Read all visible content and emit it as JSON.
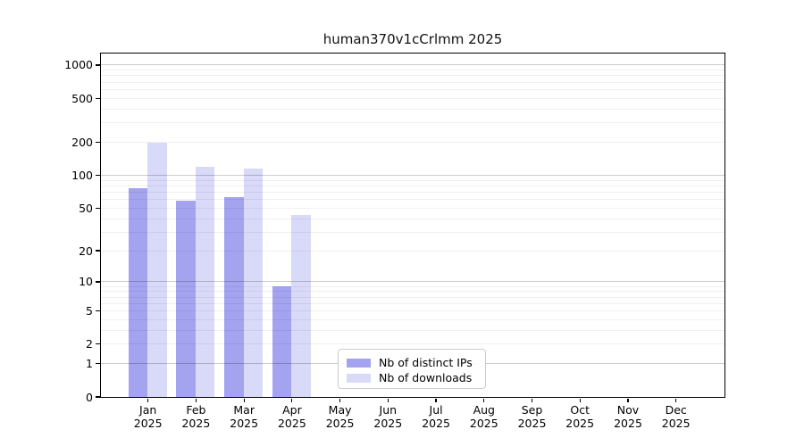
{
  "title": "human370v1cCrlmm 2025",
  "colors": {
    "ips": "#a3a3f0",
    "downloads": "#d9d9f8",
    "grid_major": "rgba(0,0,0,0.20)",
    "grid_minor": "rgba(0,0,0,0.06)",
    "spine": "#000000",
    "legend_border": "#cccccc"
  },
  "y_axis": {
    "scale": "log1p",
    "ticks": [
      0,
      1,
      2,
      5,
      10,
      20,
      50,
      100,
      200,
      500,
      1000
    ]
  },
  "x_axis": {
    "months": [
      "Jan",
      "Feb",
      "Mar",
      "Apr",
      "May",
      "Jun",
      "Jul",
      "Aug",
      "Sep",
      "Oct",
      "Nov",
      "Dec"
    ],
    "year": "2025"
  },
  "legend": {
    "items": [
      {
        "label": "Nb of distinct IPs",
        "series": "ips"
      },
      {
        "label": "Nb of downloads",
        "series": "downloads"
      }
    ]
  },
  "chart_data": {
    "type": "bar",
    "title": "human370v1cCrlmm 2025",
    "categories": [
      "Jan 2025",
      "Feb 2025",
      "Mar 2025",
      "Apr 2025",
      "May 2025",
      "Jun 2025",
      "Jul 2025",
      "Aug 2025",
      "Sep 2025",
      "Oct 2025",
      "Nov 2025",
      "Dec 2025"
    ],
    "series": [
      {
        "name": "Nb of distinct IPs",
        "color": "#a3a3f0",
        "values": [
          75,
          58,
          63,
          9,
          0,
          0,
          0,
          0,
          0,
          0,
          0,
          0
        ]
      },
      {
        "name": "Nb of downloads",
        "color": "#d9d9f8",
        "values": [
          195,
          118,
          113,
          43,
          0,
          0,
          0,
          0,
          0,
          0,
          0,
          0
        ]
      }
    ],
    "xlabel": "",
    "ylabel": "",
    "yscale": "log1p",
    "ylim": [
      0,
      1000
    ],
    "yticks": [
      0,
      1,
      2,
      5,
      10,
      20,
      50,
      100,
      200,
      500,
      1000
    ],
    "grid": true,
    "legend_position": "bottom-center"
  }
}
